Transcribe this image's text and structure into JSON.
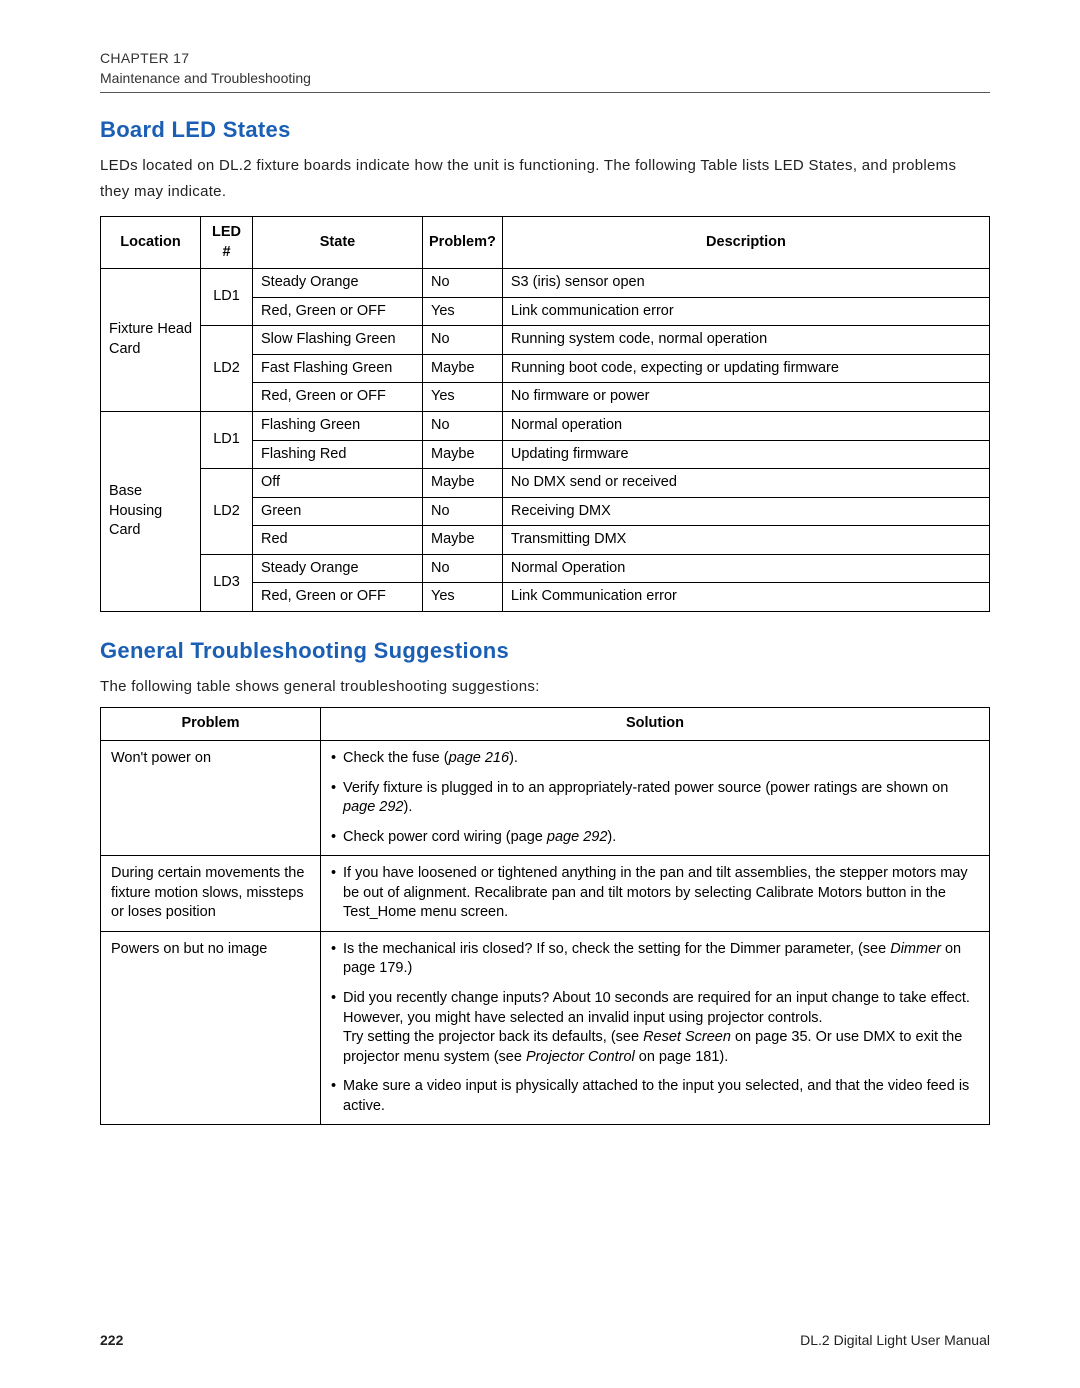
{
  "header": {
    "chapter": "CHAPTER 17",
    "subtitle": "Maintenance and Troubleshooting"
  },
  "section1": {
    "title": "Board LED States",
    "intro": "LEDs located on DL.2 fixture boards indicate how the unit is functioning. The following Table lists LED States, and problems they may indicate.",
    "columns": [
      "Location",
      "LED #",
      "State",
      "Problem?",
      "Description"
    ],
    "rows": [
      {
        "loc": "Fixture Head Card",
        "loc_rowspan": 5,
        "led": "LD1",
        "led_rowspan": 2,
        "state": "Steady Orange",
        "problem": "No",
        "desc": "S3 (iris) sensor open"
      },
      {
        "state": "Red, Green or OFF",
        "problem": "Yes",
        "desc": "Link communication error"
      },
      {
        "led": "LD2",
        "led_rowspan": 3,
        "state": "Slow Flashing Green",
        "problem": "No",
        "desc": "Running system code, normal operation"
      },
      {
        "state": "Fast Flashing Green",
        "problem": "Maybe",
        "desc": "Running boot code, expecting or updating firmware"
      },
      {
        "state": "Red, Green or OFF",
        "problem": "Yes",
        "desc": "No firmware or power"
      },
      {
        "loc": "Base Housing Card",
        "loc_rowspan": 7,
        "led": "LD1",
        "led_rowspan": 2,
        "state": "Flashing Green",
        "problem": "No",
        "desc": "Normal operation"
      },
      {
        "state": "Flashing Red",
        "problem": "Maybe",
        "desc": "Updating firmware"
      },
      {
        "led": "LD2",
        "led_rowspan": 3,
        "state": "Off",
        "problem": "Maybe",
        "desc": "No DMX send or received"
      },
      {
        "state": "Green",
        "problem": "No",
        "desc": "Receiving DMX"
      },
      {
        "state": "Red",
        "problem": "Maybe",
        "desc": "Transmitting DMX"
      },
      {
        "led": "LD3",
        "led_rowspan": 2,
        "state": "Steady Orange",
        "problem": "No",
        "desc": "Normal Operation"
      },
      {
        "state": "Red, Green or OFF",
        "problem": "Yes",
        "desc": "Link Communication error"
      }
    ]
  },
  "section2": {
    "title": "General Troubleshooting Suggestions",
    "intro": "The following table shows general troubleshooting suggestions:",
    "columns": [
      "Problem",
      "Solution"
    ],
    "rows": [
      {
        "problem": "Won't power on",
        "solutions_html": "<ul class='sol-list'><li>Check the fuse (<span class='italic'>page 216</span>).</li><li>Verify fixture is plugged in to an appropriately-rated power source (power ratings are shown on <span class='italic'>page 292</span>).</li><li>Check power cord wiring (page <span class='italic'>page 292</span>).</li></ul>"
      },
      {
        "problem": "During certain movements the fixture motion slows, missteps or loses position",
        "solutions_html": "<ul class='sol-list'><li>If you have loosened or tightened anything in the pan and tilt assemblies, the stepper motors may be out of alignment. Recalibrate pan and tilt motors by selecting Calibrate Motors button in the Test_Home menu screen.</li></ul>"
      },
      {
        "problem": "Powers on but no image",
        "solutions_html": "<ul class='sol-list'><li>Is the mechanical iris closed? If so, check the setting for the Dimmer parameter, (see <span class='italic'>Dimmer</span> on page 179.)</li><li>Did you recently change inputs? About 10 seconds are required for an input change to take effect. However, you might have selected an invalid input using projector controls.<br>Try setting the projector back its defaults, (see <span class='italic'>Reset Screen</span> on page 35. Or use DMX to exit the projector menu system (see <span class='italic'>Projector Control</span> on page 181).</li><li>Make sure a video input is physically attached to the input you selected, and that the video feed is active.</li></ul>"
      }
    ]
  },
  "footer": {
    "page": "222",
    "doc": "DL.2 Digital Light User Manual"
  },
  "colors": {
    "heading": "#1a5fb4",
    "text": "#000000",
    "border": "#000000",
    "background": "#ffffff"
  }
}
